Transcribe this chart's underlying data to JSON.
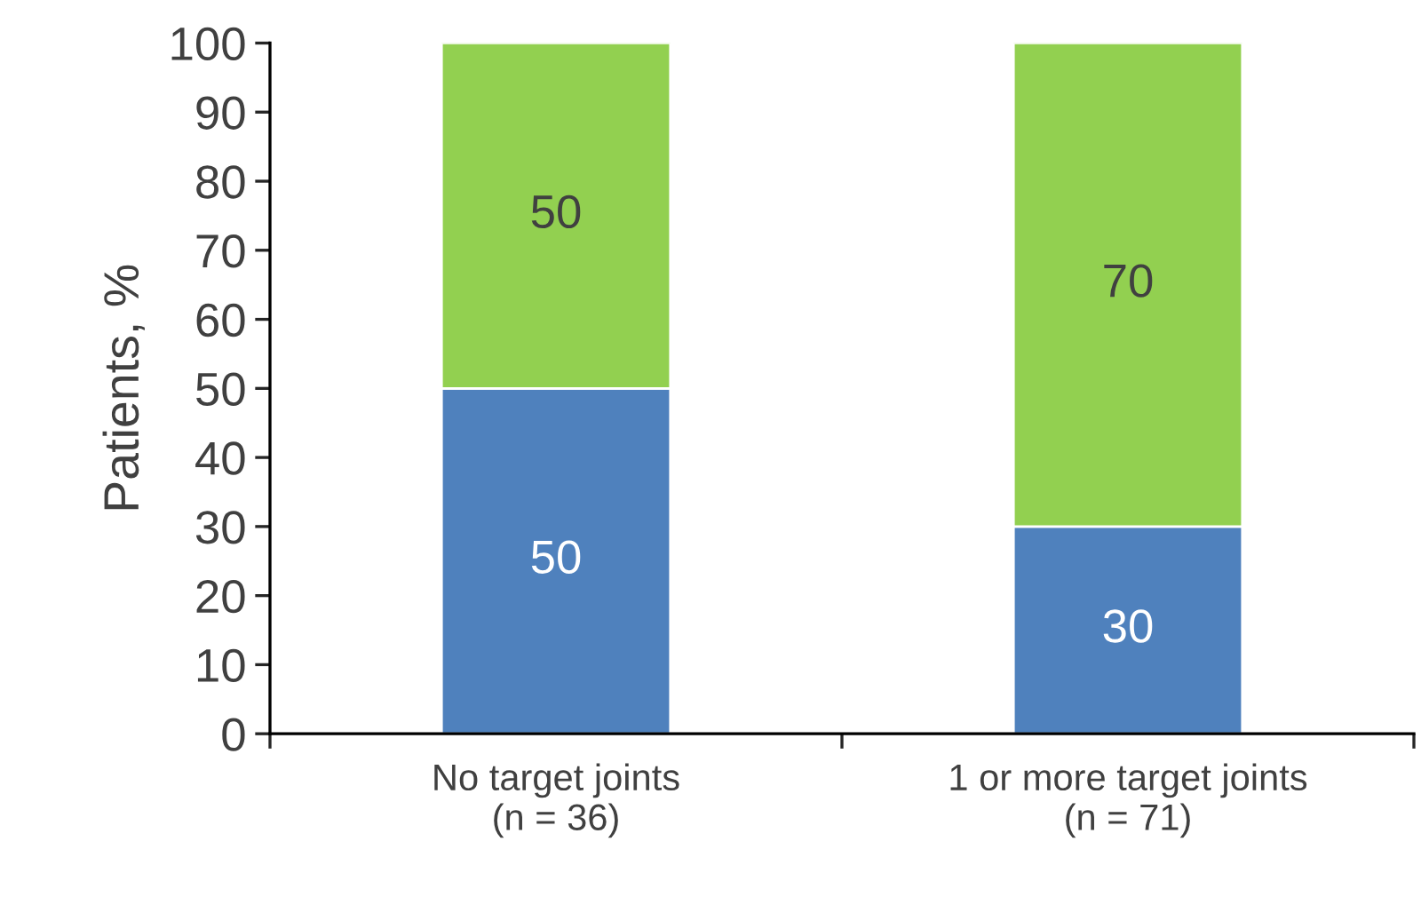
{
  "chart_data": {
    "type": "bar",
    "stacked": true,
    "ylabel": "Patients, %",
    "categories": [
      "No target joints\n(n = 36)",
      "1 or more target joints\n(n = 71)"
    ],
    "series": [
      {
        "color": "#4f81bd",
        "values": [
          50,
          30
        ]
      },
      {
        "color": "#92d050",
        "values": [
          50,
          70
        ]
      }
    ],
    "ylim": [
      0,
      100
    ],
    "yticks": [
      0,
      10,
      20,
      30,
      40,
      50,
      60,
      70,
      80,
      90,
      100
    ],
    "data_labels": true,
    "grid": false,
    "legend": false
  }
}
